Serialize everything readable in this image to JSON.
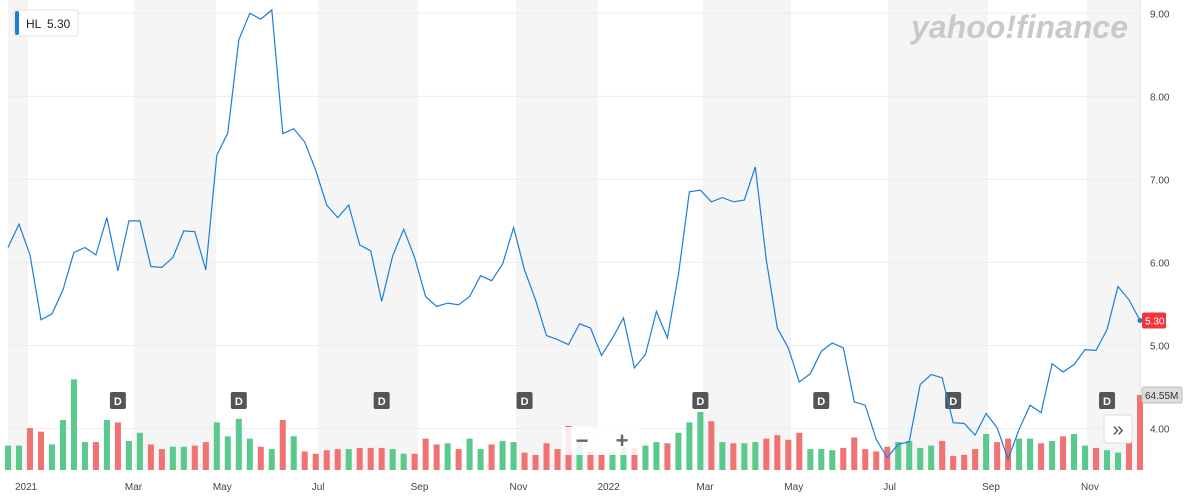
{
  "chart_data": {
    "type": "line",
    "symbol": "HL",
    "brand": "yahoo!finance",
    "controls": {
      "zoom_out": "−",
      "zoom_in": "+",
      "expand": "»"
    },
    "categories": [
      null,
      "2021",
      null,
      null,
      null,
      null,
      null,
      null,
      null,
      null,
      null,
      "Mar",
      null,
      null,
      null,
      null,
      null,
      null,
      null,
      "May",
      null,
      null,
      null,
      null,
      null,
      null,
      null,
      null,
      "Jul",
      null,
      null,
      null,
      null,
      null,
      null,
      null,
      null,
      "Sep",
      null,
      null,
      null,
      null,
      null,
      null,
      null,
      null,
      "Nov",
      null,
      null,
      null,
      null,
      null,
      null,
      null,
      "2022",
      null,
      null,
      null,
      null,
      null,
      null,
      null,
      null,
      "Mar",
      null,
      null,
      null,
      null,
      null,
      null,
      null,
      "May",
      null,
      null,
      null,
      null,
      null,
      null,
      null,
      null,
      "Jul",
      null,
      null,
      null,
      null,
      null,
      null,
      null,
      null,
      "Sep",
      null,
      null,
      null,
      null,
      null,
      null,
      null,
      null,
      "Nov",
      null,
      null,
      null,
      null,
      null
    ],
    "values": [
      6.18,
      6.46,
      6.09,
      5.31,
      5.38,
      5.67,
      6.12,
      6.18,
      6.09,
      6.54,
      5.9,
      6.5,
      6.5,
      5.95,
      5.94,
      6.06,
      6.38,
      6.37,
      5.91,
      7.29,
      7.56,
      8.68,
      9.0,
      8.93,
      9.04,
      7.55,
      7.61,
      7.45,
      7.11,
      6.69,
      6.54,
      6.69,
      6.21,
      6.14,
      5.53,
      6.08,
      6.4,
      6.06,
      5.59,
      5.47,
      5.51,
      5.49,
      5.59,
      5.84,
      5.78,
      5.98,
      6.42,
      5.91,
      5.55,
      5.12,
      5.07,
      5.01,
      5.26,
      5.21,
      4.88,
      5.09,
      5.33,
      4.73,
      4.89,
      5.41,
      5.09,
      5.85,
      6.85,
      6.87,
      6.73,
      6.78,
      6.73,
      6.75,
      7.15,
      6.03,
      5.21,
      4.97,
      4.56,
      4.66,
      4.93,
      5.03,
      4.97,
      4.32,
      4.28,
      3.87,
      3.65,
      3.81,
      3.84,
      4.53,
      4.65,
      4.61,
      4.07,
      4.06,
      3.92,
      4.18,
      4.01,
      3.63,
      3.99,
      4.28,
      4.19,
      4.78,
      4.68,
      4.77,
      4.95,
      4.94,
      5.19,
      5.71,
      5.55,
      5.3
    ],
    "value_labels": [
      null,
      null,
      null,
      null,
      null,
      null,
      null,
      null,
      null,
      null,
      null,
      null,
      null,
      null,
      null,
      null,
      null,
      null,
      null,
      null,
      null,
      null,
      null,
      null,
      null,
      null,
      null,
      null,
      null,
      null,
      null,
      null,
      null,
      null,
      null,
      null,
      null,
      null,
      null,
      null,
      null,
      null,
      null,
      null,
      null,
      null,
      null,
      null,
      null,
      null,
      null,
      null,
      null,
      null,
      null,
      null,
      null,
      null,
      null,
      null,
      null,
      null,
      null,
      null,
      null,
      null,
      null,
      null,
      null,
      null,
      null,
      null,
      null,
      null,
      null,
      null,
      null,
      null,
      null,
      null,
      null,
      null,
      null,
      null,
      null,
      null,
      null,
      null,
      null,
      null,
      null,
      null,
      null,
      null,
      null,
      null,
      null,
      null,
      null,
      null,
      null,
      null,
      null,
      "5.30"
    ],
    "color": "#1c7ed6",
    "volume": {
      "values": [
        21,
        21,
        36,
        33,
        22,
        43,
        78,
        24,
        24,
        43,
        41,
        25,
        32,
        22,
        18,
        20,
        20,
        21,
        24,
        41,
        29,
        44,
        27,
        20,
        18,
        43,
        29,
        16,
        14,
        17,
        18,
        18,
        19,
        19,
        19,
        18,
        14,
        14,
        27,
        22,
        23,
        18,
        27,
        18,
        22,
        25,
        24,
        15,
        13,
        23,
        18,
        38,
        24,
        16,
        13,
        16,
        19,
        19,
        21,
        24,
        23,
        32,
        41,
        50,
        42,
        24,
        23,
        23,
        24,
        27,
        30,
        26,
        32,
        18,
        18,
        17,
        19,
        28,
        18,
        16,
        20,
        24,
        25,
        19,
        21,
        25,
        12,
        13,
        18,
        31,
        24,
        27,
        27,
        27,
        23,
        25,
        29,
        31,
        21,
        19,
        17,
        15,
        24,
        64.55
      ],
      "value_labels": [
        null,
        null,
        null,
        null,
        null,
        null,
        null,
        null,
        null,
        null,
        null,
        null,
        null,
        null,
        null,
        null,
        null,
        null,
        null,
        null,
        null,
        null,
        null,
        null,
        null,
        null,
        null,
        null,
        null,
        null,
        null,
        null,
        null,
        null,
        null,
        null,
        null,
        null,
        null,
        null,
        null,
        null,
        null,
        null,
        null,
        null,
        null,
        null,
        null,
        null,
        null,
        null,
        null,
        null,
        null,
        null,
        null,
        null,
        null,
        null,
        null,
        null,
        null,
        null,
        null,
        null,
        null,
        null,
        null,
        null,
        null,
        null,
        null,
        null,
        null,
        null,
        null,
        null,
        null,
        null,
        null,
        null,
        null,
        null,
        null,
        null,
        null,
        null,
        null,
        null,
        null,
        null,
        null,
        null,
        null,
        null,
        null,
        null,
        null,
        null,
        null,
        null,
        null,
        "64.55M"
      ],
      "up_color": "#5bc98e",
      "down_color": "#f07373"
    },
    "dividends": [
      null,
      null,
      null,
      null,
      null,
      null,
      null,
      null,
      null,
      null,
      "D",
      null,
      null,
      null,
      null,
      null,
      null,
      null,
      null,
      null,
      null,
      "D",
      null,
      null,
      null,
      null,
      null,
      null,
      null,
      null,
      null,
      null,
      null,
      null,
      "D",
      null,
      null,
      null,
      null,
      null,
      null,
      null,
      null,
      null,
      null,
      null,
      null,
      "D",
      null,
      null,
      null,
      null,
      null,
      null,
      null,
      null,
      null,
      null,
      null,
      null,
      null,
      null,
      null,
      "D",
      null,
      null,
      null,
      null,
      null,
      null,
      null,
      null,
      null,
      null,
      "D",
      null,
      null,
      null,
      null,
      null,
      null,
      null,
      null,
      null,
      null,
      null,
      "D",
      null,
      null,
      null,
      null,
      null,
      null,
      null,
      null,
      null,
      null,
      null,
      null,
      null,
      "D",
      null,
      null,
      null
    ],
    "ylim": [
      3.5,
      9.1
    ],
    "yticks": [
      {
        "value": 9,
        "label": "9.00"
      },
      {
        "value": 8,
        "label": "8.00"
      },
      {
        "value": 7,
        "label": "7.00"
      },
      {
        "value": 6,
        "label": "6.00"
      },
      {
        "value": 5,
        "label": "5.00"
      },
      {
        "value": 4,
        "label": "4.00"
      }
    ],
    "y2lim": [
      0,
      400
    ],
    "grid": true
  }
}
